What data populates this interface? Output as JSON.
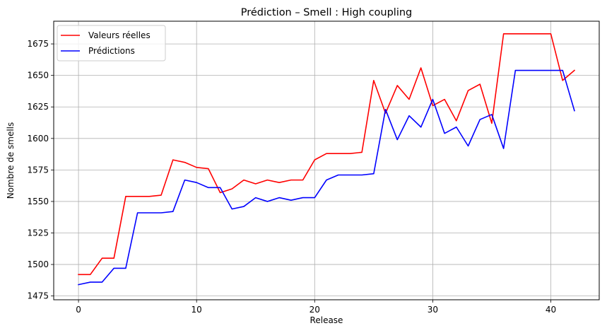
{
  "chart_data": {
    "type": "line",
    "title": "Prédiction – Smell : High coupling",
    "xlabel": "Release",
    "ylabel": "Nombre de smells",
    "xlim": [
      -2.1,
      44.1
    ],
    "ylim": [
      1472,
      1693
    ],
    "xticks": [
      0,
      10,
      20,
      30,
      40
    ],
    "yticks": [
      1475,
      1500,
      1525,
      1550,
      1575,
      1600,
      1625,
      1650,
      1675
    ],
    "grid": true,
    "legend_position": "top-left",
    "x": [
      0,
      1,
      2,
      3,
      4,
      5,
      6,
      7,
      8,
      9,
      10,
      11,
      12,
      13,
      14,
      15,
      16,
      17,
      18,
      19,
      20,
      21,
      22,
      23,
      24,
      25,
      26,
      27,
      28,
      29,
      30,
      31,
      32,
      33,
      34,
      35,
      36,
      37,
      38,
      39,
      40,
      41,
      42
    ],
    "series": [
      {
        "name": "Valeurs réelles",
        "color": "#ff0000",
        "values": [
          1492,
          1492,
          1505,
          1505,
          1554,
          1554,
          1554,
          1555,
          1583,
          1581,
          1577,
          1576,
          1557,
          1560,
          1567,
          1564,
          1567,
          1565,
          1567,
          1567,
          1583,
          1588,
          1588,
          1588,
          1589,
          1646,
          1620,
          1642,
          1631,
          1656,
          1626,
          1631,
          1614,
          1638,
          1643,
          1612,
          1683,
          1683,
          1683,
          1683,
          1683,
          1646,
          1654
        ]
      },
      {
        "name": "Prédictions",
        "color": "#0000ff",
        "values": [
          1484,
          1486,
          1486,
          1497,
          1497,
          1541,
          1541,
          1541,
          1542,
          1567,
          1565,
          1561,
          1561,
          1544,
          1546,
          1553,
          1550,
          1553,
          1551,
          1553,
          1553,
          1567,
          1571,
          1571,
          1571,
          1572,
          1623,
          1599,
          1618,
          1609,
          1631,
          1604,
          1609,
          1594,
          1615,
          1619,
          1592,
          1654,
          1654,
          1654,
          1654,
          1654,
          1622
        ]
      }
    ]
  }
}
